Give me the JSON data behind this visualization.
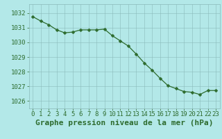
{
  "x": [
    0,
    1,
    2,
    3,
    4,
    5,
    6,
    7,
    8,
    9,
    10,
    11,
    12,
    13,
    14,
    15,
    16,
    17,
    18,
    19,
    20,
    21,
    22,
    23
  ],
  "y": [
    1031.75,
    1031.45,
    1031.2,
    1030.85,
    1030.65,
    1030.7,
    1030.85,
    1030.85,
    1030.85,
    1030.9,
    1030.45,
    1030.1,
    1029.75,
    1029.2,
    1028.6,
    1028.1,
    1027.55,
    1027.05,
    1026.85,
    1026.65,
    1026.6,
    1026.45,
    1026.72,
    1026.72
  ],
  "line_color": "#2d6b2d",
  "marker": "D",
  "marker_size": 2.5,
  "background_color": "#b3e8e8",
  "grid_color": "#8ababa",
  "xlabel": "Graphe pression niveau de la mer (hPa)",
  "ylim": [
    1025.5,
    1032.6
  ],
  "xlim": [
    -0.5,
    23.5
  ],
  "yticks": [
    1026,
    1027,
    1028,
    1029,
    1030,
    1031,
    1032
  ],
  "xticks": [
    0,
    1,
    2,
    3,
    4,
    5,
    6,
    7,
    8,
    9,
    10,
    11,
    12,
    13,
    14,
    15,
    16,
    17,
    18,
    19,
    20,
    21,
    22,
    23
  ],
  "tick_color": "#2d6b2d",
  "label_color": "#2d6b2d",
  "xlabel_fontsize": 8,
  "tick_fontsize": 6.5,
  "linewidth": 0.9
}
